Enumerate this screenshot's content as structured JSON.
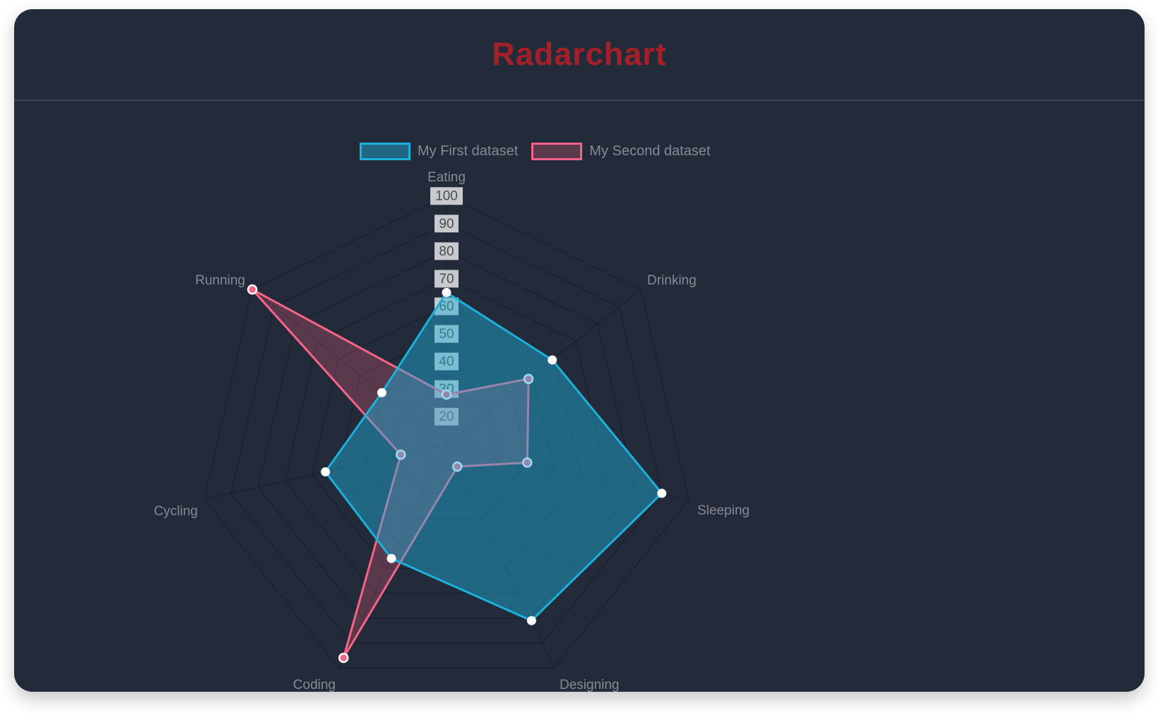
{
  "page": {
    "title": "Radarchart"
  },
  "legend": {
    "items": [
      {
        "label": "My First dataset"
      },
      {
        "label": "My Second dataset"
      }
    ]
  },
  "chart_data": {
    "type": "radar",
    "title": "Radarchart",
    "categories": [
      "Eating",
      "Drinking",
      "Sleeping",
      "Designing",
      "Coding",
      "Cycling",
      "Running"
    ],
    "series": [
      {
        "name": "My First dataset",
        "values": [
          65,
          59,
          90,
          81,
          56,
          55,
          40
        ],
        "line_color": "#1CB1DA",
        "fill_color": "rgba(31,178,220,0.45)",
        "point_fill": "#FFFFFF",
        "point_border": "none"
      },
      {
        "name": "My Second dataset",
        "values": [
          28,
          48,
          40,
          19,
          96,
          27,
          100
        ],
        "line_color": "#FA6386",
        "fill_color": "rgba(255,99,132,0.25)",
        "point_fill": "#FA6386",
        "point_border": "#FFFFFF"
      }
    ],
    "scale": {
      "min": 10,
      "max": 100,
      "step": 10,
      "tick_labels": [
        "20",
        "30",
        "40",
        "50",
        "60",
        "70",
        "80",
        "90",
        "100"
      ]
    },
    "legend_position": "top",
    "grid": true
  },
  "colors": {
    "page_bg": "#FFFFFF",
    "card_bg": "#232B3B",
    "title": "#A42028",
    "divider": "#3A4459",
    "axis_label": "#868A90",
    "tick_text": "#494D52",
    "tick_backdrop": "rgba(255,255,255,0.75)",
    "grid_line": "rgba(0,0,0,0.28)"
  }
}
